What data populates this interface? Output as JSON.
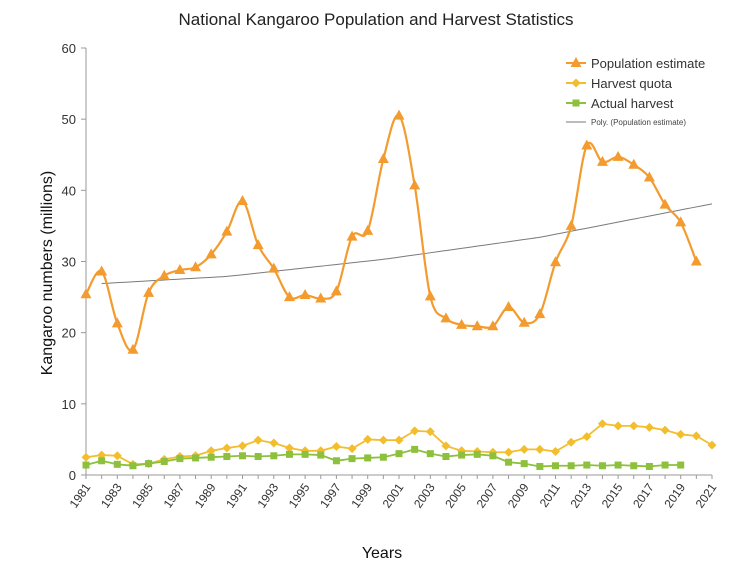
{
  "chart_data": {
    "type": "line",
    "title": "National Kangaroo Population and Harvest Statistics",
    "xlabel": "Years",
    "ylabel": "Kangaroo numbers  (millions)",
    "ylim": [
      0,
      60
    ],
    "yticks": [
      0,
      10,
      20,
      30,
      40,
      50,
      60
    ],
    "xlim": [
      1981,
      2021
    ],
    "xticks": [
      "1981",
      "1983",
      "1985",
      "1987",
      "1989",
      "1991",
      "1993",
      "1995",
      "1997",
      "1999",
      "2001",
      "2003",
      "2005",
      "2007",
      "2009",
      "2011",
      "2013",
      "2015",
      "2017",
      "2019",
      "2021"
    ],
    "grid": false,
    "legend_position": "top-right",
    "series": [
      {
        "name": "Population estimate",
        "color": "#F39B2E",
        "marker": "triangle",
        "smooth": true,
        "x": [
          1981,
          1982,
          1983,
          1984,
          1985,
          1986,
          1987,
          1988,
          1989,
          1990,
          1991,
          1992,
          1993,
          1994,
          1995,
          1996,
          1997,
          1998,
          1999,
          2000,
          2001,
          2002,
          2003,
          2004,
          2005,
          2006,
          2007,
          2008,
          2009,
          2010,
          2011,
          2012,
          2013,
          2014,
          2015,
          2016,
          2017,
          2018,
          2019,
          2020
        ],
        "values": [
          25.4,
          28.6,
          21.3,
          17.6,
          25.6,
          28.0,
          28.8,
          29.2,
          31.0,
          34.2,
          38.5,
          32.3,
          29.0,
          25.0,
          25.3,
          24.8,
          25.8,
          33.5,
          34.3,
          44.4,
          50.5,
          40.7,
          25.1,
          22.0,
          21.1,
          20.9,
          20.9,
          23.6,
          21.4,
          22.6,
          29.9,
          35.0,
          46.3,
          44.0,
          44.7,
          43.6,
          41.8,
          38.0,
          35.5,
          30.0
        ]
      },
      {
        "name": "Harvest quota",
        "color": "#F2BE2E",
        "marker": "diamond",
        "smooth": false,
        "x": [
          1981,
          1982,
          1983,
          1984,
          1985,
          1986,
          1987,
          1988,
          1989,
          1990,
          1991,
          1992,
          1993,
          1994,
          1995,
          1996,
          1997,
          1998,
          1999,
          2000,
          2001,
          2002,
          2003,
          2004,
          2005,
          2006,
          2007,
          2008,
          2009,
          2010,
          2011,
          2012,
          2013,
          2014,
          2015,
          2016,
          2017,
          2018,
          2019,
          2020,
          2021
        ],
        "values": [
          2.5,
          2.8,
          2.7,
          1.5,
          1.6,
          2.2,
          2.6,
          2.7,
          3.4,
          3.8,
          4.1,
          4.9,
          4.5,
          3.8,
          3.4,
          3.4,
          4.0,
          3.7,
          5.0,
          4.9,
          4.9,
          6.2,
          6.1,
          4.1,
          3.4,
          3.3,
          3.2,
          3.2,
          3.6,
          3.6,
          3.3,
          4.6,
          5.4,
          7.2,
          6.9,
          6.9,
          6.7,
          6.3,
          5.7,
          5.5,
          4.2
        ]
      },
      {
        "name": "Actual harvest",
        "color": "#8DC03C",
        "marker": "square",
        "smooth": false,
        "x": [
          1981,
          1982,
          1983,
          1984,
          1985,
          1986,
          1987,
          1988,
          1989,
          1990,
          1991,
          1992,
          1993,
          1994,
          1995,
          1996,
          1997,
          1998,
          1999,
          2000,
          2001,
          2002,
          2003,
          2004,
          2005,
          2006,
          2007,
          2008,
          2009,
          2010,
          2011,
          2012,
          2013,
          2014,
          2015,
          2016,
          2017,
          2018,
          2019
        ],
        "values": [
          1.4,
          2.0,
          1.5,
          1.3,
          1.6,
          1.9,
          2.3,
          2.4,
          2.5,
          2.6,
          2.7,
          2.6,
          2.7,
          2.9,
          2.9,
          2.8,
          2.0,
          2.3,
          2.4,
          2.5,
          3.0,
          3.6,
          3.0,
          2.6,
          2.8,
          2.9,
          2.7,
          1.8,
          1.6,
          1.2,
          1.3,
          1.3,
          1.4,
          1.3,
          1.4,
          1.3,
          1.2,
          1.4,
          1.4
        ]
      },
      {
        "name": "Poly. (Population estimate)",
        "color": "#7A7A7A",
        "marker": "none",
        "trendline": true,
        "x": [
          1982,
          1990,
          2000,
          2010,
          2021
        ],
        "values": [
          26.9,
          27.9,
          30.3,
          33.4,
          38.1
        ]
      }
    ]
  }
}
